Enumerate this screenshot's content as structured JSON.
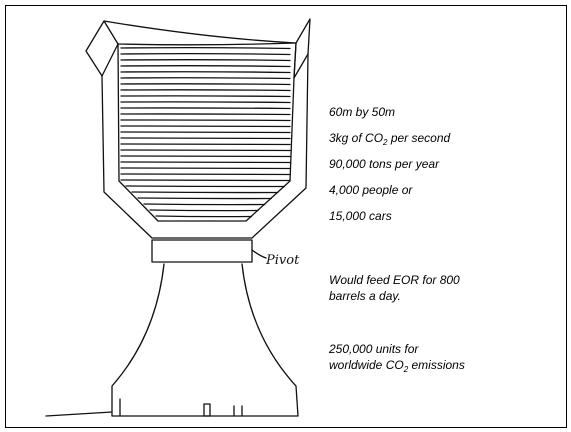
{
  "sketch": {
    "label": "Pivot"
  },
  "text_blocks": [
    {
      "lines": [
        [
          "60m by 50m"
        ]
      ]
    },
    {
      "lines": [
        [
          "3kg of CO",
          {
            "sub": "2"
          },
          " per second"
        ]
      ]
    },
    {
      "lines": [
        [
          "90,000 tons per year"
        ]
      ]
    },
    {
      "lines": [
        [
          "4,000 people or"
        ]
      ]
    },
    {
      "lines": [
        [
          "15,000 cars"
        ]
      ]
    },
    {
      "lines": [
        [
          "Would feed EOR for 800"
        ],
        [
          "barrels a day."
        ]
      ]
    },
    {
      "lines": [
        [
          "250,000 units for"
        ],
        [
          "worldwide CO",
          {
            "sub": "2"
          },
          " emissions"
        ]
      ]
    }
  ]
}
